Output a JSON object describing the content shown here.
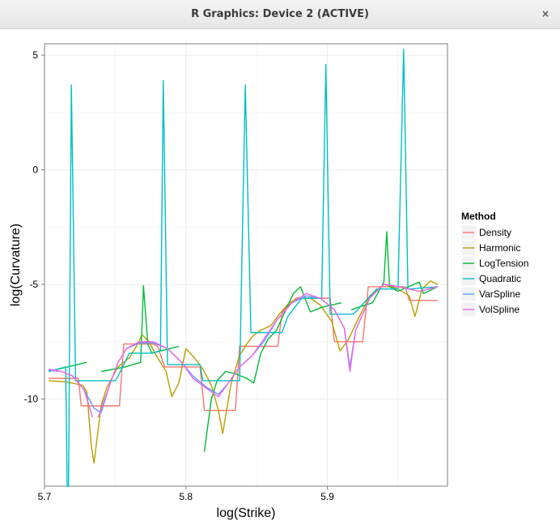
{
  "window": {
    "title": "R Graphics: Device 2 (ACTIVE)",
    "close_label": "×"
  },
  "chart_data": {
    "type": "line",
    "title": "",
    "xlabel": "log(Strike)",
    "ylabel": "log(Curvature)",
    "xlim": [
      5.7,
      5.985
    ],
    "ylim": [
      -13.8,
      5.5
    ],
    "xticks": [
      "5.7",
      "5.8",
      "5.9"
    ],
    "xtick_values": [
      5.7,
      5.8,
      5.9
    ],
    "yticks": [
      "5",
      "0",
      "-5",
      "-10"
    ],
    "ytick_values": [
      5,
      0,
      -5,
      -10
    ],
    "grid": true,
    "legend": {
      "title": "Method",
      "position": "right"
    },
    "series": [
      {
        "name": "Density",
        "color": "#F8766D",
        "points": [
          [
            5.703,
            -9.1
          ],
          [
            5.724,
            -9.1
          ],
          [
            5.726,
            -10.3
          ],
          [
            5.753,
            -10.3
          ],
          [
            5.756,
            -7.6
          ],
          [
            5.777,
            -7.6
          ],
          [
            5.78,
            -7.7
          ],
          [
            5.785,
            -8.6
          ],
          [
            5.81,
            -8.6
          ],
          [
            5.813,
            -10.5
          ],
          [
            5.835,
            -10.5
          ],
          [
            5.838,
            -7.7
          ],
          [
            5.865,
            -7.7
          ],
          [
            5.868,
            -6.2
          ],
          [
            5.878,
            -5.6
          ],
          [
            5.902,
            -5.6
          ],
          [
            5.905,
            -7.5
          ],
          [
            5.925,
            -7.5
          ],
          [
            5.929,
            -5.1
          ],
          [
            5.955,
            -5.1
          ],
          [
            5.958,
            -5.7
          ],
          [
            5.978,
            -5.7
          ]
        ]
      },
      {
        "name": "Harmonic",
        "color": "#B79F00",
        "points": [
          [
            5.703,
            -9.2
          ],
          [
            5.715,
            -9.25
          ],
          [
            5.727,
            -9.4
          ],
          [
            5.73,
            -9.7
          ],
          [
            5.733,
            -12.0
          ],
          [
            5.735,
            -12.8
          ],
          [
            5.74,
            -10.3
          ],
          [
            5.744,
            -9.5
          ],
          [
            5.752,
            -8.6
          ],
          [
            5.76,
            -8.2
          ],
          [
            5.765,
            -7.7
          ],
          [
            5.769,
            -7.2
          ],
          [
            5.774,
            -7.5
          ],
          [
            5.778,
            -8.0
          ],
          [
            5.782,
            -8.4
          ],
          [
            5.786,
            -8.8
          ],
          [
            5.79,
            -9.9
          ],
          [
            5.795,
            -9.3
          ],
          [
            5.8,
            -7.8
          ],
          [
            5.806,
            -8.2
          ],
          [
            5.812,
            -8.7
          ],
          [
            5.818,
            -9.4
          ],
          [
            5.823,
            -10.5
          ],
          [
            5.826,
            -11.5
          ],
          [
            5.832,
            -9.3
          ],
          [
            5.838,
            -8.1
          ],
          [
            5.843,
            -7.6
          ],
          [
            5.848,
            -7.2
          ],
          [
            5.853,
            -7.0
          ],
          [
            5.86,
            -6.8
          ],
          [
            5.866,
            -6.3
          ],
          [
            5.873,
            -5.8
          ],
          [
            5.88,
            -5.6
          ],
          [
            5.888,
            -5.6
          ],
          [
            5.895,
            -5.9
          ],
          [
            5.903,
            -6.6
          ],
          [
            5.909,
            -7.9
          ],
          [
            5.915,
            -7.4
          ],
          [
            5.921,
            -6.6
          ],
          [
            5.93,
            -5.5
          ],
          [
            5.94,
            -5.0
          ],
          [
            5.95,
            -5.2
          ],
          [
            5.958,
            -5.5
          ],
          [
            5.962,
            -6.4
          ],
          [
            5.967,
            -5.2
          ],
          [
            5.973,
            -4.85
          ],
          [
            5.978,
            -5.0
          ]
        ]
      },
      {
        "name": "LogTension",
        "color": "#00BA38",
        "points": [
          [
            5.703,
            -8.8
          ],
          [
            5.73,
            -8.4
          ],
          "gap",
          [
            5.74,
            -8.8
          ],
          [
            5.757,
            -8.6
          ],
          [
            5.768,
            -8.4
          ],
          [
            5.77,
            -5.05
          ],
          [
            5.773,
            -7.6
          ],
          [
            5.776,
            -8.0
          ],
          [
            5.795,
            -7.7
          ],
          "gap",
          [
            5.813,
            -12.3
          ],
          [
            5.818,
            -10.0
          ],
          [
            5.822,
            -9.2
          ],
          [
            5.828,
            -8.8
          ],
          [
            5.835,
            -8.9
          ],
          [
            5.843,
            -9.1
          ],
          [
            5.848,
            -9.3
          ],
          [
            5.853,
            -8.0
          ],
          [
            5.858,
            -7.4
          ],
          [
            5.864,
            -7.0
          ],
          [
            5.87,
            -6.2
          ],
          [
            5.876,
            -5.4
          ],
          [
            5.881,
            -5.1
          ],
          [
            5.888,
            -6.2
          ],
          [
            5.896,
            -6.0
          ],
          [
            5.91,
            -5.8
          ],
          "gap",
          [
            5.917,
            -6.1
          ],
          [
            5.932,
            -5.8
          ],
          [
            5.94,
            -4.9
          ],
          [
            5.942,
            -2.7
          ],
          [
            5.944,
            -5.1
          ],
          [
            5.95,
            -5.3
          ],
          [
            5.965,
            -4.9
          ],
          [
            5.968,
            -5.4
          ],
          [
            5.978,
            -5.1
          ]
        ]
      },
      {
        "name": "Quadratic",
        "color": "#00BFC4",
        "points": [
          [
            5.703,
            -8.8
          ],
          [
            5.715,
            -8.6
          ],
          [
            5.716,
            -13.8
          ],
          [
            5.717,
            -13.8
          ],
          [
            5.719,
            3.7
          ],
          [
            5.722,
            -9.2
          ],
          [
            5.75,
            -9.2
          ],
          [
            5.752,
            -9.0
          ],
          [
            5.76,
            -8.0
          ],
          [
            5.775,
            -8.0
          ],
          [
            5.782,
            -7.9
          ],
          [
            5.784,
            3.9
          ],
          [
            5.787,
            -8.5
          ],
          [
            5.81,
            -8.5
          ],
          [
            5.812,
            -9.2
          ],
          [
            5.838,
            -9.2
          ],
          [
            5.842,
            3.7
          ],
          [
            5.846,
            -7.1
          ],
          [
            5.868,
            -7.1
          ],
          [
            5.872,
            -6.4
          ],
          [
            5.882,
            -5.6
          ],
          [
            5.896,
            -5.6
          ],
          [
            5.899,
            4.6
          ],
          [
            5.902,
            -6.3
          ],
          [
            5.918,
            -6.3
          ],
          [
            5.92,
            -6.2
          ],
          [
            5.935,
            -5.2
          ],
          [
            5.95,
            -5.2
          ],
          [
            5.954,
            5.25
          ],
          [
            5.957,
            -5.2
          ],
          [
            5.978,
            -5.1
          ]
        ]
      },
      {
        "name": "VarSpline",
        "color": "#619CFF",
        "points": [
          [
            5.703,
            -8.75
          ],
          [
            5.712,
            -8.8
          ],
          [
            5.72,
            -9.0
          ],
          [
            5.728,
            -9.6
          ],
          [
            5.735,
            -10.4
          ],
          [
            5.74,
            -10.6
          ],
          [
            5.746,
            -9.4
          ],
          [
            5.752,
            -8.4
          ],
          [
            5.758,
            -7.8
          ],
          [
            5.767,
            -7.55
          ],
          [
            5.777,
            -7.55
          ],
          [
            5.787,
            -7.8
          ],
          [
            5.797,
            -8.4
          ],
          [
            5.805,
            -9.0
          ],
          [
            5.815,
            -9.5
          ],
          [
            5.823,
            -9.8
          ],
          [
            5.83,
            -9.3
          ],
          [
            5.838,
            -8.6
          ],
          [
            5.847,
            -8.1
          ],
          [
            5.855,
            -7.5
          ],
          [
            5.865,
            -6.5
          ],
          [
            5.875,
            -5.8
          ],
          [
            5.885,
            -5.5
          ],
          [
            5.895,
            -5.6
          ],
          [
            5.905,
            -6.1
          ],
          [
            5.912,
            -6.9
          ],
          [
            5.916,
            -8.6
          ],
          [
            5.92,
            -7.0
          ],
          [
            5.93,
            -5.6
          ],
          [
            5.94,
            -5.0
          ],
          [
            5.95,
            -5.1
          ],
          [
            5.965,
            -5.3
          ],
          [
            5.978,
            -5.1
          ]
        ]
      },
      {
        "name": "VolSpline",
        "color": "#F564E3",
        "points": [
          [
            5.703,
            -8.7
          ],
          [
            5.712,
            -8.8
          ],
          [
            5.72,
            -9.0
          ],
          [
            5.728,
            -9.6
          ],
          [
            5.734,
            -10.8
          ],
          "gap",
          [
            5.738,
            -10.8
          ],
          [
            5.746,
            -9.4
          ],
          [
            5.752,
            -8.4
          ],
          [
            5.758,
            -7.8
          ],
          [
            5.767,
            -7.5
          ],
          [
            5.777,
            -7.5
          ],
          [
            5.787,
            -7.8
          ],
          [
            5.797,
            -8.4
          ],
          [
            5.805,
            -9.1
          ],
          [
            5.815,
            -9.55
          ],
          [
            5.823,
            -9.9
          ],
          [
            5.83,
            -9.3
          ],
          [
            5.838,
            -8.6
          ],
          [
            5.847,
            -8.1
          ],
          [
            5.855,
            -7.4
          ],
          [
            5.865,
            -6.5
          ],
          [
            5.875,
            -5.8
          ],
          [
            5.885,
            -5.4
          ],
          [
            5.895,
            -5.6
          ],
          [
            5.905,
            -6.1
          ],
          [
            5.912,
            -6.9
          ],
          [
            5.916,
            -8.8
          ],
          [
            5.92,
            -7.0
          ],
          [
            5.93,
            -5.6
          ],
          [
            5.94,
            -5.0
          ],
          [
            5.95,
            -5.1
          ],
          [
            5.965,
            -5.3
          ],
          [
            5.978,
            -5.1
          ]
        ]
      }
    ]
  }
}
